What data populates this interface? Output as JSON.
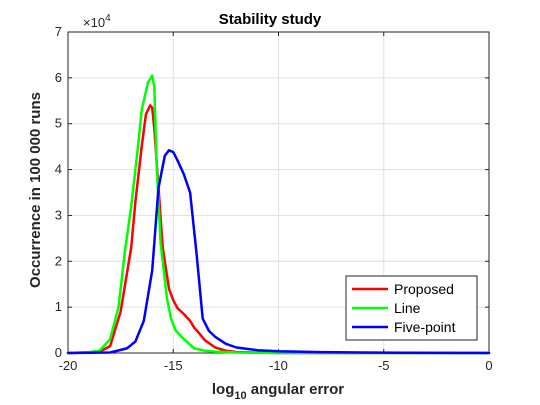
{
  "chart_data": {
    "type": "line",
    "title": "Stability study",
    "xlabel_base": "log",
    "xlabel_sub": "10",
    "xlabel_rest": " angular error",
    "ylabel": "Occurrence in 100 000 runs",
    "y_exponent_base": "×10",
    "y_exponent_power": "4",
    "xlim": [
      -20,
      0
    ],
    "ylim": [
      0,
      7
    ],
    "x_ticks": [
      -20,
      -15,
      -10,
      -5,
      0
    ],
    "x_tick_labels": [
      "-20",
      "-15",
      "-10",
      "-5",
      "0"
    ],
    "y_ticks": [
      0,
      1,
      2,
      3,
      4,
      5,
      6,
      7
    ],
    "y_tick_labels": [
      "0",
      "1",
      "2",
      "3",
      "4",
      "5",
      "6",
      "7"
    ],
    "grid": true,
    "legend_position": "bottom-right",
    "series": [
      {
        "name": "Proposed",
        "color": "#ff0000",
        "x": [
          -20,
          -19,
          -18.5,
          -18,
          -17.5,
          -17,
          -16.8,
          -16.5,
          -16.3,
          -16.1,
          -16.0,
          -15.9,
          -15.7,
          -15.5,
          -15.2,
          -15.0,
          -14.8,
          -14.5,
          -14.2,
          -14.0,
          -13.8,
          -13.5,
          -13.0,
          -12.5,
          -12.0,
          -11,
          -10,
          -5,
          0
        ],
        "y": [
          0,
          0.01,
          0.03,
          0.15,
          0.9,
          2.3,
          3.3,
          4.5,
          5.2,
          5.4,
          5.35,
          4.9,
          3.6,
          2.3,
          1.4,
          1.15,
          0.98,
          0.85,
          0.7,
          0.55,
          0.45,
          0.28,
          0.12,
          0.05,
          0.02,
          0.01,
          0,
          0,
          0
        ]
      },
      {
        "name": "Line",
        "color": "#00ff00",
        "x": [
          -20,
          -19,
          -18.5,
          -18,
          -17.6,
          -17.3,
          -17,
          -16.7,
          -16.5,
          -16.2,
          -16.0,
          -15.9,
          -15.8,
          -15.6,
          -15.3,
          -15.1,
          -14.9,
          -14.6,
          -14.2,
          -14.0,
          -13.5,
          -13.0,
          -12,
          -11,
          -10,
          -5,
          0
        ],
        "y": [
          0,
          0.02,
          0.05,
          0.3,
          1.0,
          2.2,
          3.2,
          4.4,
          5.3,
          5.9,
          6.05,
          5.8,
          4.2,
          2.4,
          1.2,
          0.75,
          0.5,
          0.35,
          0.18,
          0.1,
          0.05,
          0.03,
          0.01,
          0.005,
          0,
          0,
          0
        ]
      },
      {
        "name": "Five-point",
        "color": "#0000ff",
        "x": [
          -20,
          -18,
          -17.2,
          -16.8,
          -16.4,
          -16.0,
          -15.7,
          -15.4,
          -15.2,
          -15.0,
          -14.8,
          -14.5,
          -14.2,
          -13.9,
          -13.6,
          -13.3,
          -13.0,
          -12.5,
          -12.0,
          -11,
          -10,
          -8,
          -6,
          -4,
          -2,
          0
        ],
        "y": [
          0,
          0.01,
          0.1,
          0.25,
          0.7,
          1.8,
          3.6,
          4.3,
          4.42,
          4.38,
          4.2,
          3.9,
          3.5,
          2.2,
          0.75,
          0.48,
          0.35,
          0.2,
          0.12,
          0.06,
          0.04,
          0.02,
          0.01,
          0.005,
          0.002,
          0
        ]
      }
    ]
  }
}
